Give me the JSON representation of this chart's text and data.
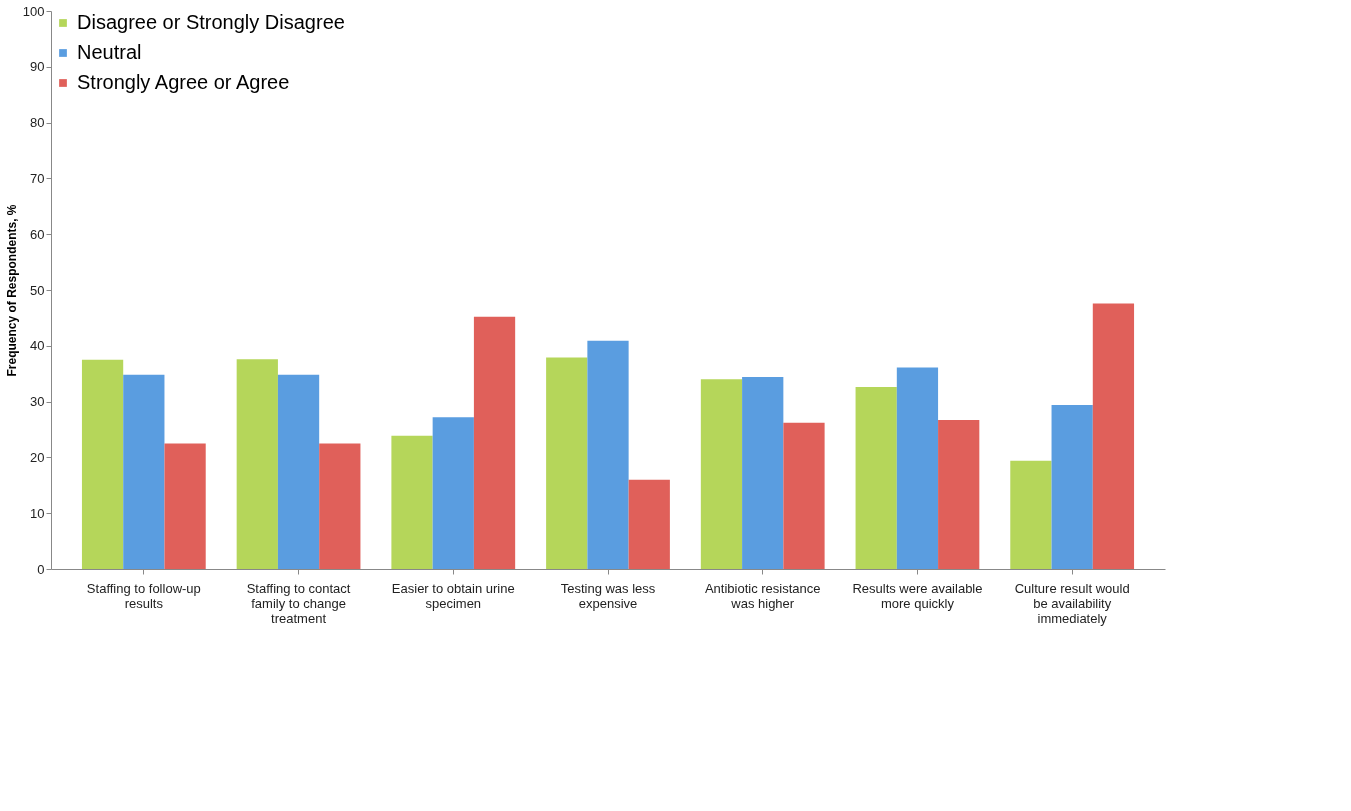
{
  "chart_data": {
    "type": "bar",
    "ylabel": "Frequency of Respondents, %",
    "categories": [
      "Staffing to follow-up results",
      "Staffing to  contact family to change treatment",
      "Easier to obtain urine specimen",
      "Testing was less expensive",
      "Antibiotic resistance was higher",
      "Results were available more quickly",
      "Culture result would be availability immediately"
    ],
    "series": [
      {
        "name": "Disagree or Strongly Disagree",
        "color": "#b5d65a",
        "values": [
          37.5,
          37.6,
          23.9,
          37.9,
          34.0,
          32.6,
          19.4
        ]
      },
      {
        "name": "Neutral",
        "color": "#5a9de0",
        "values": [
          34.8,
          34.8,
          27.2,
          40.9,
          34.4,
          36.1,
          29.4
        ]
      },
      {
        "name": "Strongly Agree or Agree",
        "color": "#e0605a",
        "values": [
          22.5,
          22.5,
          45.2,
          16.0,
          26.2,
          26.7,
          47.6
        ]
      }
    ],
    "ylim": [
      0,
      100
    ],
    "yticks": [
      0,
      10,
      20,
      30,
      40,
      50,
      60,
      70,
      80,
      90,
      100
    ],
    "grid": false,
    "legend": "top left"
  }
}
